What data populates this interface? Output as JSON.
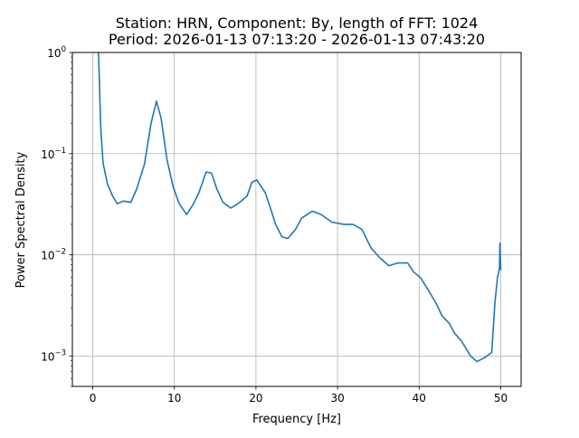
{
  "chart_data": {
    "type": "line",
    "title_line1": "Station: HRN, Component: By, length of FFT: 1024",
    "title_line2": "Period: 2026-01-13 07:13:20 - 2026-01-13 07:43:20",
    "xlabel": "Frequency [Hz]",
    "ylabel": "Power Spectral Density",
    "xlim": [
      -2.5,
      52.5
    ],
    "ylim": [
      0.0005,
      1
    ],
    "yscale": "log",
    "grid": true,
    "x_ticks": [
      0,
      10,
      20,
      30,
      40,
      50
    ],
    "x_tick_labels": [
      "0",
      "10",
      "20",
      "30",
      "40",
      "50"
    ],
    "y_ticks": [
      0.001,
      0.01,
      0.1,
      1
    ],
    "y_tick_labels": [
      {
        "base": "10",
        "exp": "−3"
      },
      {
        "base": "10",
        "exp": "−2"
      },
      {
        "base": "10",
        "exp": "−1"
      },
      {
        "base": "10",
        "exp": "0"
      }
    ],
    "series": [
      {
        "name": "PSD",
        "color": "#1f77b4",
        "x": [
          0.6,
          0.7,
          0.97,
          1.26,
          1.8,
          2.44,
          3.0,
          3.74,
          4.67,
          5.4,
          6.33,
          7.15,
          7.8,
          8.37,
          9.1,
          9.85,
          10.6,
          11.5,
          12.26,
          13.0,
          13.9,
          14.55,
          15.2,
          15.96,
          16.9,
          17.8,
          18.9,
          19.5,
          20.1,
          21.15,
          21.9,
          22.4,
          23.2,
          23.9,
          24.85,
          25.6,
          26.9,
          28.0,
          29.3,
          30.8,
          31.9,
          33.0,
          34.1,
          35.2,
          36.3,
          37.4,
          38.6,
          39.3,
          40.2,
          41.1,
          42.1,
          42.8,
          43.7,
          44.3,
          45.2,
          46.3,
          47.1,
          48.0,
          48.9,
          49.3,
          49.6,
          49.85,
          49.9,
          50.0
        ],
        "y": [
          2.0,
          1.0,
          0.185,
          0.081,
          0.05,
          0.038,
          0.032,
          0.034,
          0.033,
          0.045,
          0.078,
          0.2,
          0.33,
          0.226,
          0.087,
          0.047,
          0.032,
          0.025,
          0.031,
          0.041,
          0.066,
          0.064,
          0.045,
          0.033,
          0.029,
          0.032,
          0.038,
          0.052,
          0.055,
          0.041,
          0.027,
          0.02,
          0.015,
          0.0145,
          0.0178,
          0.023,
          0.027,
          0.025,
          0.021,
          0.02,
          0.02,
          0.0178,
          0.0117,
          0.0093,
          0.0078,
          0.0083,
          0.0083,
          0.0068,
          0.0059,
          0.0045,
          0.0033,
          0.0025,
          0.0021,
          0.0017,
          0.0014,
          0.001,
          0.00088,
          0.00096,
          0.00108,
          0.0034,
          0.0059,
          0.0073,
          0.0131,
          0.0071
        ]
      }
    ]
  }
}
